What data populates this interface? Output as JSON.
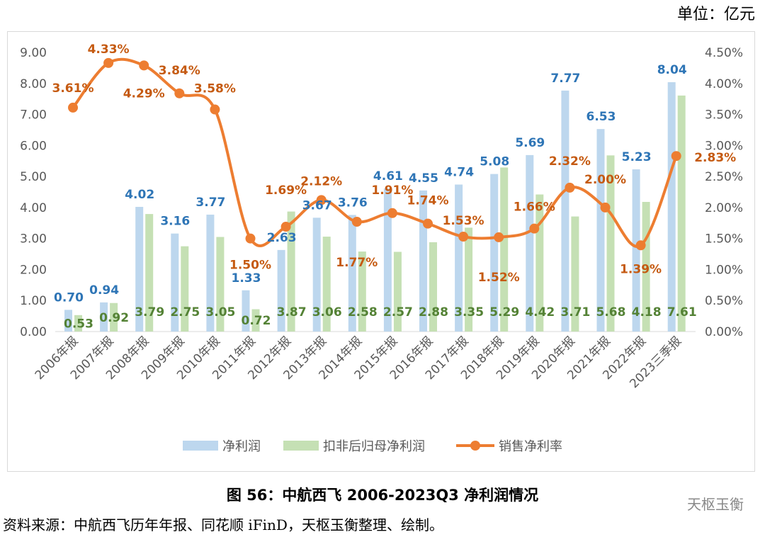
{
  "unit": "单位：亿元",
  "caption": "图  56：中航西飞 2006-2023Q3 净利润情况",
  "source": "资料来源：中航西飞历年年报、同花顺 iFinD，天枢玉衡整理、绘制。",
  "watermark": "天枢玉衡",
  "chart_data": {
    "type": "bar+line",
    "categories": [
      "2006年报",
      "2007年报",
      "2008年报",
      "2009年报",
      "2010年报",
      "2011年报",
      "2012年报",
      "2013年报",
      "2014年报",
      "2015年报",
      "2016年报",
      "2017年报",
      "2018年报",
      "2019年报",
      "2020年报",
      "2021年报",
      "2022年报",
      "2023三季报"
    ],
    "series": [
      {
        "name": "净利润",
        "type": "bar",
        "axis": "left",
        "color": "#bdd7ee",
        "label_color": "#2e75b6",
        "values": [
          0.7,
          0.94,
          4.02,
          3.16,
          3.77,
          1.33,
          2.63,
          3.67,
          3.76,
          4.61,
          4.55,
          4.74,
          5.08,
          5.69,
          7.77,
          6.53,
          5.23,
          8.04
        ]
      },
      {
        "name": "扣非后归母净利润",
        "type": "bar",
        "axis": "left",
        "color": "#c5e0b4",
        "label_color": "#548235",
        "values": [
          0.53,
          0.92,
          3.79,
          2.75,
          3.05,
          0.72,
          3.87,
          3.06,
          2.58,
          2.57,
          2.88,
          3.35,
          5.29,
          4.42,
          3.71,
          5.68,
          4.18,
          7.61
        ]
      },
      {
        "name": "销售净利率",
        "type": "line",
        "axis": "right",
        "color": "#ed7d31",
        "label_color": "#c55a11",
        "unit": "%",
        "values": [
          3.61,
          4.33,
          4.29,
          3.84,
          3.58,
          1.5,
          1.69,
          2.12,
          1.77,
          1.91,
          1.74,
          1.53,
          1.52,
          1.66,
          2.32,
          2.0,
          1.39,
          2.83
        ]
      }
    ],
    "yleft": {
      "ylim": [
        0,
        9
      ],
      "ticks": [
        "0.00",
        "1.00",
        "2.00",
        "3.00",
        "4.00",
        "5.00",
        "6.00",
        "7.00",
        "8.00",
        "9.00"
      ]
    },
    "yright": {
      "ylim": [
        0,
        4.5
      ],
      "ticks": [
        "0.00%",
        "0.50%",
        "1.00%",
        "1.50%",
        "2.00%",
        "2.50%",
        "3.00%",
        "3.50%",
        "4.00%",
        "4.50%"
      ]
    },
    "legend": "bottom",
    "grid": false
  }
}
